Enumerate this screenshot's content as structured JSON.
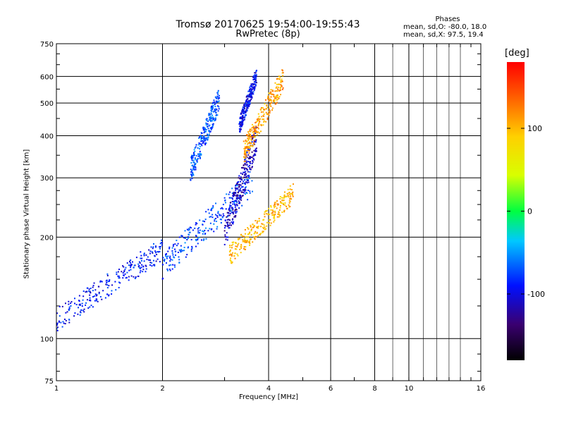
{
  "chart_data": {
    "type": "scatter",
    "title": "Tromsø 20170625 19:54:00-19:55:43",
    "subtitle": "RwPretec (8p)",
    "stats_title": "Phases",
    "stats": [
      "mean, sd,O: -80.0, 18.0",
      "mean, sd,X:  97.5, 19.4"
    ],
    "xlabel": "Frequency [MHz]",
    "ylabel": "Stationary phase Virtual Height [km]",
    "x_scale": "log",
    "y_scale": "log",
    "xlim": [
      1,
      16
    ],
    "ylim": [
      75,
      750
    ],
    "x_ticks": [
      1,
      2,
      4,
      6,
      8,
      10,
      16
    ],
    "y_ticks": [
      75,
      100,
      200,
      300,
      400,
      500,
      600,
      750
    ],
    "grid": true,
    "colorbar": {
      "label": "[deg]",
      "range": [
        -180,
        180
      ],
      "ticks": [
        100,
        0,
        -100
      ]
    },
    "series": [
      {
        "region": "low-frequency O trace",
        "x_range": [
          1.0,
          2.0
        ],
        "y_range": [
          105,
          200
        ],
        "phase": -90
      },
      {
        "region": "O trace lower leg",
        "x_range": [
          2.0,
          3.6
        ],
        "y_range": [
          150,
          320
        ],
        "phase": -75
      },
      {
        "region": "O trace upper cluster",
        "x_range": [
          2.4,
          2.9
        ],
        "y_range": [
          290,
          560
        ],
        "phase": -70
      },
      {
        "region": "O cusp near 3.3 MHz",
        "x_range": [
          3.0,
          3.7
        ],
        "y_range": [
          180,
          440
        ],
        "phase": -110
      },
      {
        "region": "O high trace",
        "x_range": [
          3.3,
          3.7
        ],
        "y_range": [
          400,
          640
        ],
        "phase": -95
      },
      {
        "region": "X trace lower",
        "x_range": [
          3.1,
          4.7
        ],
        "y_range": [
          165,
          290
        ],
        "phase": 100
      },
      {
        "region": "X trace upper",
        "x_range": [
          3.4,
          4.4
        ],
        "y_range": [
          330,
          640
        ],
        "phase": 110
      }
    ]
  }
}
